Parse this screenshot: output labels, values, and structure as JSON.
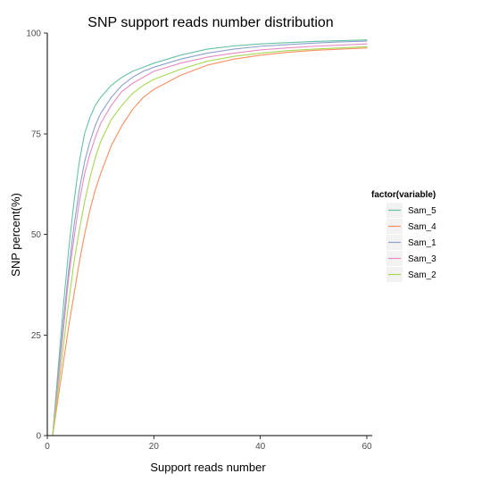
{
  "chart_data": {
    "type": "line",
    "title": "SNP support reads number distribution",
    "xlabel": "Support reads number",
    "ylabel": "SNP percent(%)",
    "xlim": [
      0,
      61
    ],
    "ylim": [
      0,
      100
    ],
    "x_ticks": [
      0,
      20,
      40,
      60
    ],
    "y_ticks": [
      0,
      25,
      50,
      75,
      100
    ],
    "x_tick_labels": [
      "0",
      "20",
      "40",
      "60"
    ],
    "y_tick_labels": [
      "0",
      "25",
      "50",
      "75",
      "100"
    ],
    "grid": false,
    "legend": {
      "title": "factor(variable)",
      "placement": "right"
    },
    "x": [
      1,
      2,
      3,
      4,
      5,
      6,
      7,
      8,
      9,
      10,
      12,
      14,
      16,
      18,
      20,
      25,
      30,
      35,
      40,
      45,
      50,
      55,
      60
    ],
    "series": [
      {
        "name": "Sam_5",
        "color": "#66c2a5",
        "values": [
          0,
          16,
          32,
          46,
          58,
          68,
          75,
          79,
          82,
          84,
          87,
          89,
          90.5,
          91.5,
          92.5,
          94.5,
          96,
          96.8,
          97.3,
          97.6,
          97.9,
          98.1,
          98.3
        ]
      },
      {
        "name": "Sam_4",
        "color": "#fc8d62",
        "values": [
          0,
          9,
          18,
          27,
          35,
          43,
          50,
          56,
          61,
          65,
          72,
          77,
          81,
          84,
          86,
          89.5,
          92,
          93.5,
          94.5,
          95.2,
          95.7,
          96,
          96.3
        ]
      },
      {
        "name": "Sam_1",
        "color": "#8da0cb",
        "values": [
          0,
          14,
          28,
          41,
          52,
          61,
          68,
          73,
          77,
          80,
          84,
          87,
          89,
          90.5,
          91.5,
          93.5,
          95,
          96,
          96.7,
          97.1,
          97.5,
          97.8,
          98
        ]
      },
      {
        "name": "Sam_3",
        "color": "#e78ac3",
        "values": [
          0,
          13,
          26,
          39,
          49,
          58,
          65,
          70,
          74,
          77.5,
          82,
          85.5,
          87.5,
          89,
          90.5,
          92.5,
          94,
          95,
          95.8,
          96.3,
          96.7,
          97,
          97.3
        ]
      },
      {
        "name": "Sam_2",
        "color": "#a6d854",
        "values": [
          0,
          11,
          22,
          33,
          43,
          51,
          58,
          64,
          69,
          73,
          78.5,
          82,
          85,
          87,
          88.5,
          91,
          93,
          94.2,
          95,
          95.6,
          96,
          96.3,
          96.6
        ]
      }
    ]
  }
}
